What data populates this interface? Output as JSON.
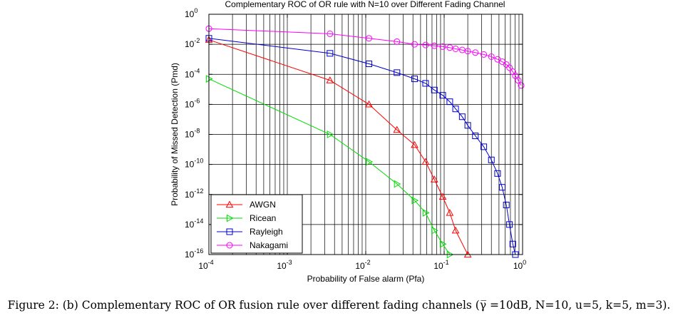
{
  "chart_data": {
    "type": "line",
    "title": "Complementary ROC of OR rule with N=10 over Different Fading Channel",
    "xlabel": "Probability of False alarm (Pfa)",
    "ylabel": "Probability of Missed Detection (Pmd)",
    "xscale": "log",
    "yscale": "log",
    "xlim": [
      0.0001,
      1
    ],
    "ylim": [
      1e-16,
      1
    ],
    "x_tick_base": "10",
    "x_tick_exponents": [
      "-4",
      "-3",
      "-2",
      "-1",
      "0"
    ],
    "y_tick_base": "10",
    "y_tick_exponents": [
      "0",
      "-2",
      "-4",
      "-6",
      "-8",
      "-10",
      "-12",
      "-14",
      "-16"
    ],
    "grid": true,
    "legend_position": "bottom-left",
    "series": [
      {
        "name": "AWGN",
        "color": "#ff0000",
        "marker": "triangle-up",
        "x": [
          0.0001,
          0.0035,
          0.011,
          0.025,
          0.042,
          0.058,
          0.075,
          0.096,
          0.118,
          0.14,
          0.2
        ],
        "y": [
          0.02,
          4e-05,
          1e-06,
          2e-08,
          2e-09,
          1.5e-10,
          1e-11,
          7e-13,
          6e-14,
          4e-15,
          1e-16
        ]
      },
      {
        "name": "Ricean",
        "color": "#00dd00",
        "marker": "triangle-right",
        "x": [
          0.0001,
          0.0035,
          0.011,
          0.025,
          0.042,
          0.058,
          0.075,
          0.096,
          0.118
        ],
        "y": [
          5e-05,
          1e-08,
          1.5e-10,
          5e-12,
          4e-13,
          6e-14,
          4e-15,
          5e-16,
          1e-16
        ]
      },
      {
        "name": "Rayleigh",
        "color": "#0000cc",
        "marker": "square",
        "x": [
          0.0001,
          0.0035,
          0.011,
          0.025,
          0.042,
          0.058,
          0.075,
          0.096,
          0.118,
          0.14,
          0.17,
          0.2,
          0.25,
          0.32,
          0.4,
          0.48,
          0.55,
          0.62,
          0.68,
          0.75,
          0.81
        ],
        "y": [
          0.025,
          0.0025,
          0.0005,
          0.00013,
          5e-05,
          2.5e-05,
          9e-06,
          4e-06,
          1.5e-06,
          5e-07,
          1.5e-07,
          4e-08,
          8e-09,
          1.5e-09,
          2e-10,
          2.5e-11,
          3e-12,
          2e-13,
          1e-14,
          5e-16,
          1e-16
        ]
      },
      {
        "name": "Nakagami",
        "color": "#ff00ff",
        "marker": "circle",
        "x": [
          0.0001,
          0.0035,
          0.011,
          0.025,
          0.042,
          0.058,
          0.075,
          0.096,
          0.118,
          0.14,
          0.17,
          0.2,
          0.25,
          0.32,
          0.4,
          0.48,
          0.55,
          0.62,
          0.68,
          0.75,
          0.81,
          0.88,
          0.96
        ],
        "y": [
          0.11,
          0.05,
          0.025,
          0.015,
          0.01,
          0.009,
          0.008,
          0.007,
          0.006,
          0.005,
          0.0042,
          0.0035,
          0.0028,
          0.0021,
          0.0015,
          0.001,
          0.0007,
          0.00045,
          0.00028,
          0.00015,
          8e-05,
          4e-05,
          1.8e-05
        ]
      }
    ]
  },
  "caption": "Figure 2: (b) Complementary ROC of OR fusion rule over different fading channels (γ̅ =10dB, N=10, u=5, k=5, m=3)."
}
